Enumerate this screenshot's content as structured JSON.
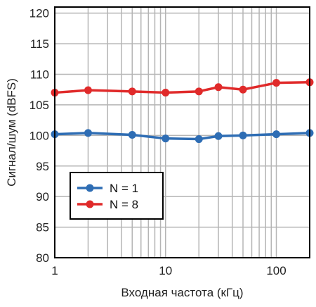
{
  "chart_data": {
    "type": "line",
    "xlabel": "Входная частота (кГц)",
    "ylabel": "Сигнал/шум (dBFS)",
    "xscale": "log",
    "xlim": [
      1,
      200
    ],
    "ylim": [
      80,
      121
    ],
    "x_ticks": [
      1,
      10,
      100
    ],
    "x_tick_labels": [
      "1",
      "10",
      "100"
    ],
    "y_ticks": [
      80,
      85,
      90,
      95,
      100,
      105,
      110,
      115,
      120
    ],
    "y_tick_labels": [
      "80",
      "85",
      "90",
      "95",
      "100",
      "105",
      "110",
      "115",
      "120"
    ],
    "grid": true,
    "legend_position": "lower-left",
    "x": [
      1,
      2,
      5,
      10,
      20,
      30,
      50,
      100,
      200
    ],
    "series": [
      {
        "name": "N = 1",
        "color": "#2e6db4",
        "values": [
          100.2,
          100.4,
          100.1,
          99.5,
          99.4,
          99.9,
          100.0,
          100.2,
          100.4
        ]
      },
      {
        "name": "N = 8",
        "color": "#e02a2a",
        "values": [
          107.0,
          107.4,
          107.2,
          107.0,
          107.2,
          107.9,
          107.5,
          108.6,
          108.7
        ]
      }
    ]
  }
}
